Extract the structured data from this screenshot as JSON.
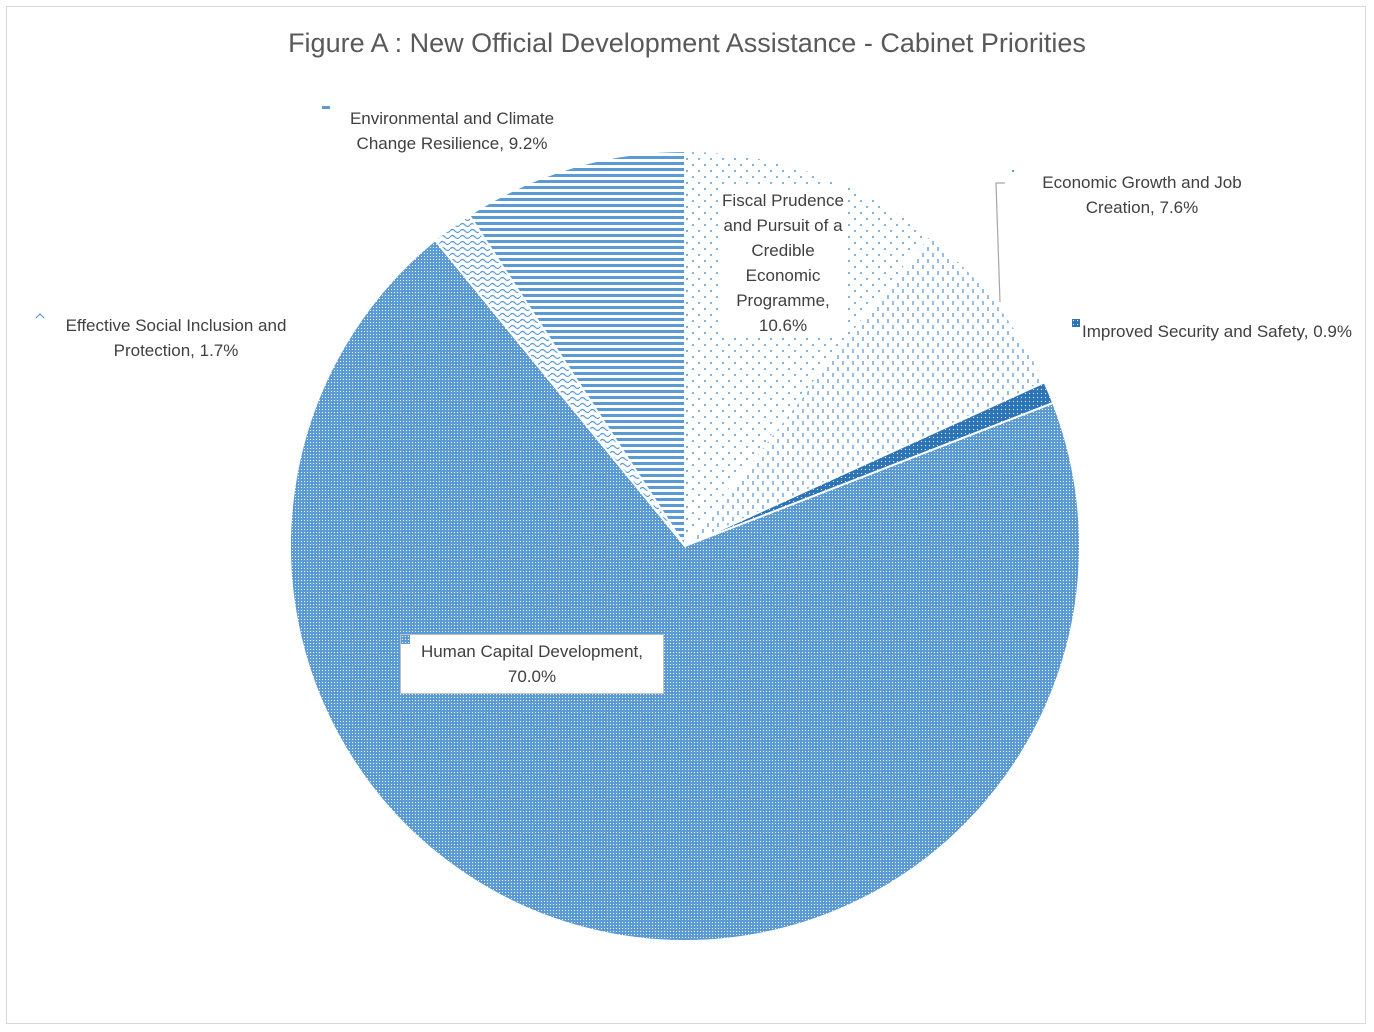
{
  "chart_data": {
    "type": "pie",
    "title": "Figure A : New Official Development Assistance - Cabinet Priorities",
    "slices": [
      {
        "label": "Fiscal Prudence and Pursuit of a Credible Economic Programme",
        "value": 10.6,
        "display": "10.6%",
        "pattern": "sparse-dots"
      },
      {
        "label": "Economic Growth and Job Creation",
        "value": 7.6,
        "display": "7.6%",
        "pattern": "vertical-dashes"
      },
      {
        "label": "Improved Security and Safety",
        "value": 0.9,
        "display": "0.9%",
        "pattern": "dark-crosshatch"
      },
      {
        "label": "Human Capital Development",
        "value": 70.0,
        "display": "70.0%",
        "pattern": "dense-dots"
      },
      {
        "label": "Effective Social Inclusion and Protection",
        "value": 1.7,
        "display": "1.7%",
        "pattern": "waves"
      },
      {
        "label": "Environmental and Climate Change Resilience",
        "value": 9.2,
        "display": "9.2%",
        "pattern": "horizontal-stripes"
      }
    ],
    "colors": {
      "accent": "#5b9bd5",
      "dark": "#2e75b6",
      "text": "#404040",
      "title": "#595959"
    },
    "legend": "data-labels"
  }
}
